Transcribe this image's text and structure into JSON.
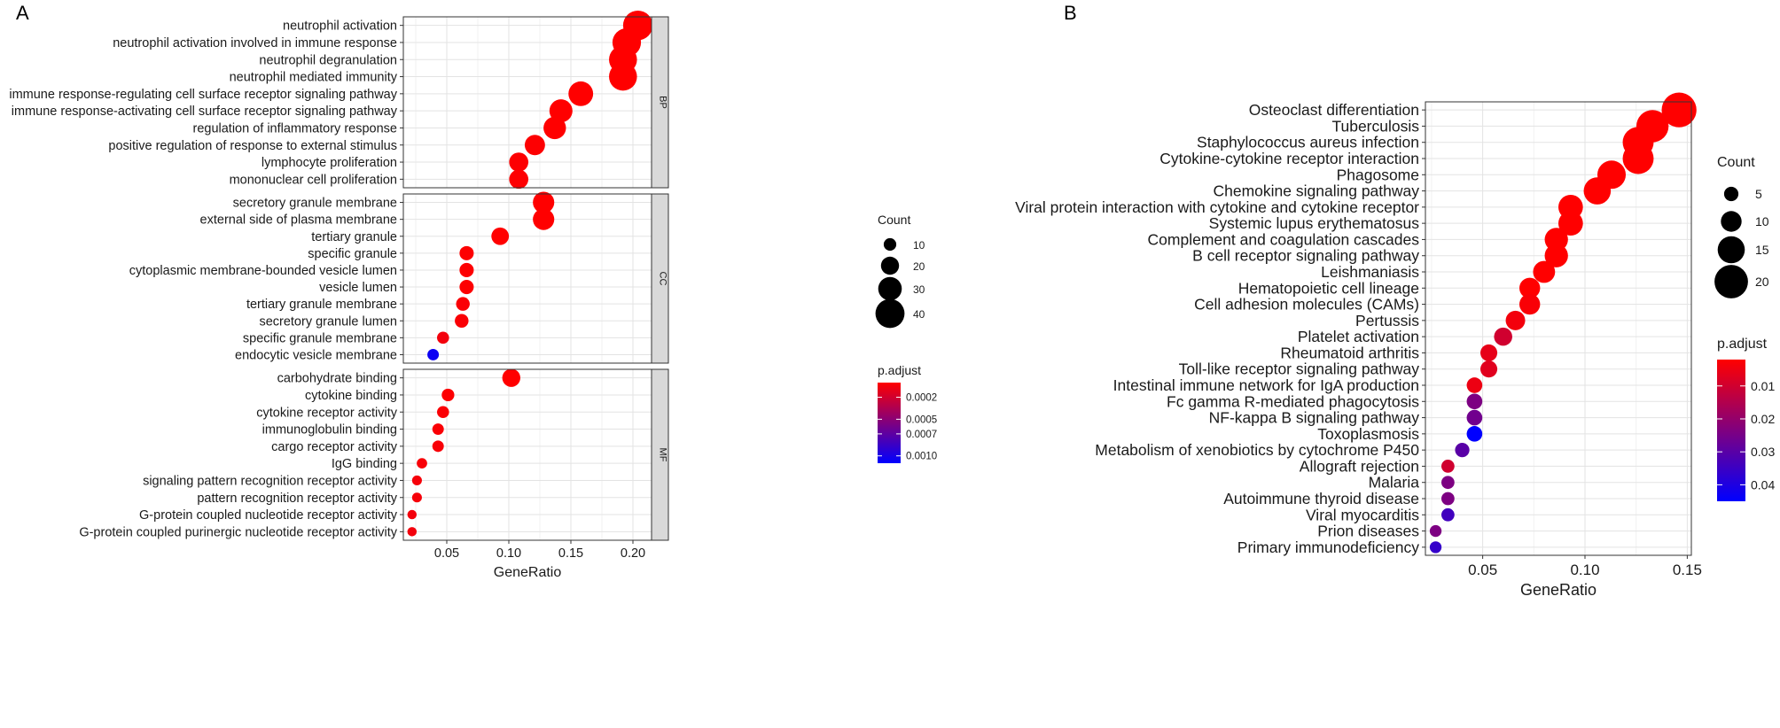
{
  "panels": {
    "a_label": "A",
    "b_label": "B"
  },
  "chart_data": [
    {
      "id": "A",
      "type": "scatter",
      "title": "",
      "xlabel": "GeneRatio",
      "ylabel": "",
      "xlim": [
        0.015,
        0.215
      ],
      "xticks": [
        0.05,
        0.1,
        0.15,
        0.2
      ],
      "xtick_labels": [
        "0.05",
        "0.10",
        "0.15",
        "0.20"
      ],
      "grid": true,
      "size_legend": {
        "title": "Count",
        "values": [
          10,
          20,
          30,
          40
        ],
        "labels": [
          "10",
          "20",
          "30",
          "40"
        ]
      },
      "color_legend": {
        "title": "p.adjust",
        "range": [
          0.0,
          0.0011
        ],
        "low_color": "#ff0000",
        "high_color": "#0000ff",
        "ticks": [
          0.0002,
          0.0005,
          0.0007,
          0.001
        ],
        "tick_labels": [
          "0.0002",
          "0.0005",
          "0.0007",
          "0.0010"
        ]
      },
      "facets": [
        {
          "strip": "BP",
          "points": [
            {
              "term": "neutrophil activation",
              "gene_ratio": 0.204,
              "count": 41,
              "p_adjust": 0.0
            },
            {
              "term": "neutrophil activation involved in immune response",
              "gene_ratio": 0.195,
              "count": 39,
              "p_adjust": 0.0
            },
            {
              "term": "neutrophil degranulation",
              "gene_ratio": 0.192,
              "count": 38,
              "p_adjust": 0.0
            },
            {
              "term": "neutrophil mediated immunity",
              "gene_ratio": 0.192,
              "count": 38,
              "p_adjust": 0.0
            },
            {
              "term": "immune response-regulating cell surface receptor signaling pathway",
              "gene_ratio": 0.158,
              "count": 32,
              "p_adjust": 0.0
            },
            {
              "term": "immune response-activating cell surface receptor signaling pathway",
              "gene_ratio": 0.142,
              "count": 29,
              "p_adjust": 0.0
            },
            {
              "term": "regulation of inflammatory response",
              "gene_ratio": 0.137,
              "count": 28,
              "p_adjust": 0.0
            },
            {
              "term": "positive regulation of response to external stimulus",
              "gene_ratio": 0.121,
              "count": 24,
              "p_adjust": 1e-05
            },
            {
              "term": "lymphocyte proliferation",
              "gene_ratio": 0.108,
              "count": 22,
              "p_adjust": 1e-05
            },
            {
              "term": "mononuclear cell proliferation",
              "gene_ratio": 0.108,
              "count": 22,
              "p_adjust": 1e-05
            }
          ]
        },
        {
          "strip": "CC",
          "points": [
            {
              "term": "secretory granule membrane",
              "gene_ratio": 0.128,
              "count": 26,
              "p_adjust": 0.0
            },
            {
              "term": "external side of plasma membrane",
              "gene_ratio": 0.128,
              "count": 26,
              "p_adjust": 0.0
            },
            {
              "term": "tertiary granule",
              "gene_ratio": 0.093,
              "count": 19,
              "p_adjust": 0.0
            },
            {
              "term": "specific granule",
              "gene_ratio": 0.066,
              "count": 13,
              "p_adjust": 1e-05
            },
            {
              "term": "cytoplasmic membrane-bounded vesicle lumen",
              "gene_ratio": 0.066,
              "count": 13,
              "p_adjust": 1e-05
            },
            {
              "term": "vesicle lumen",
              "gene_ratio": 0.066,
              "count": 13,
              "p_adjust": 1e-05
            },
            {
              "term": "tertiary granule membrane",
              "gene_ratio": 0.063,
              "count": 12,
              "p_adjust": 2e-05
            },
            {
              "term": "secretory granule lumen",
              "gene_ratio": 0.062,
              "count": 12,
              "p_adjust": 2e-05
            },
            {
              "term": "specific granule membrane",
              "gene_ratio": 0.047,
              "count": 9,
              "p_adjust": 5e-05
            },
            {
              "term": "endocytic vesicle membrane",
              "gene_ratio": 0.039,
              "count": 8,
              "p_adjust": 0.00105
            }
          ]
        },
        {
          "strip": "MF",
          "points": [
            {
              "term": "carbohydrate binding",
              "gene_ratio": 0.102,
              "count": 20,
              "p_adjust": 0.0
            },
            {
              "term": "cytokine binding",
              "gene_ratio": 0.051,
              "count": 10,
              "p_adjust": 1e-05
            },
            {
              "term": "cytokine receptor activity",
              "gene_ratio": 0.047,
              "count": 9,
              "p_adjust": 2e-05
            },
            {
              "term": "immunoglobulin binding",
              "gene_ratio": 0.043,
              "count": 8,
              "p_adjust": 2e-05
            },
            {
              "term": "cargo receptor activity",
              "gene_ratio": 0.043,
              "count": 8,
              "p_adjust": 3e-05
            },
            {
              "term": "IgG binding",
              "gene_ratio": 0.03,
              "count": 6,
              "p_adjust": 3e-05
            },
            {
              "term": "signaling pattern recognition receptor activity",
              "gene_ratio": 0.026,
              "count": 5,
              "p_adjust": 4e-05
            },
            {
              "term": "pattern recognition receptor activity",
              "gene_ratio": 0.026,
              "count": 5,
              "p_adjust": 4e-05
            },
            {
              "term": "G-protein coupled nucleotide receptor activity",
              "gene_ratio": 0.022,
              "count": 4,
              "p_adjust": 5e-05
            },
            {
              "term": "G-protein coupled purinergic nucleotide receptor activity",
              "gene_ratio": 0.022,
              "count": 4,
              "p_adjust": 5e-05
            }
          ]
        }
      ]
    },
    {
      "id": "B",
      "type": "scatter",
      "title": "",
      "xlabel": "GeneRatio",
      "ylabel": "",
      "xlim": [
        0.022,
        0.152
      ],
      "xticks": [
        0.05,
        0.1,
        0.15
      ],
      "xtick_labels": [
        "0.05",
        "0.10",
        "0.15"
      ],
      "grid": true,
      "size_legend": {
        "title": "Count",
        "values": [
          5,
          10,
          15,
          20
        ],
        "labels": [
          "5",
          "10",
          "15",
          "20"
        ]
      },
      "color_legend": {
        "title": "p.adjust",
        "range": [
          0.002,
          0.045
        ],
        "low_color": "#ff0000",
        "high_color": "#0000ff",
        "ticks": [
          0.01,
          0.02,
          0.03,
          0.04
        ],
        "tick_labels": [
          "0.01",
          "0.02",
          "0.03",
          "0.04"
        ]
      },
      "points": [
        {
          "term": "Osteoclast differentiation",
          "gene_ratio": 0.146,
          "count": 21,
          "p_adjust": 0.002
        },
        {
          "term": "Tuberculosis",
          "gene_ratio": 0.133,
          "count": 19,
          "p_adjust": 0.002
        },
        {
          "term": "Staphylococcus aureus infection",
          "gene_ratio": 0.126,
          "count": 18,
          "p_adjust": 0.002
        },
        {
          "term": "Cytokine-cytokine receptor interaction",
          "gene_ratio": 0.126,
          "count": 18,
          "p_adjust": 0.002
        },
        {
          "term": "Phagosome",
          "gene_ratio": 0.113,
          "count": 16,
          "p_adjust": 0.002
        },
        {
          "term": "Chemokine signaling pathway",
          "gene_ratio": 0.106,
          "count": 15,
          "p_adjust": 0.002
        },
        {
          "term": "Viral protein interaction with cytokine and cytokine receptor",
          "gene_ratio": 0.093,
          "count": 13,
          "p_adjust": 0.002
        },
        {
          "term": "Systemic lupus erythematosus",
          "gene_ratio": 0.093,
          "count": 13,
          "p_adjust": 0.002
        },
        {
          "term": "Complement and coagulation cascades",
          "gene_ratio": 0.086,
          "count": 12,
          "p_adjust": 0.002
        },
        {
          "term": "B cell receptor signaling pathway",
          "gene_ratio": 0.086,
          "count": 12,
          "p_adjust": 0.002
        },
        {
          "term": "Leishmaniasis",
          "gene_ratio": 0.08,
          "count": 11,
          "p_adjust": 0.002
        },
        {
          "term": "Hematopoietic cell lineage",
          "gene_ratio": 0.073,
          "count": 10,
          "p_adjust": 0.002
        },
        {
          "term": "Cell adhesion molecules (CAMs)",
          "gene_ratio": 0.073,
          "count": 10,
          "p_adjust": 0.003
        },
        {
          "term": "Pertussis",
          "gene_ratio": 0.066,
          "count": 9,
          "p_adjust": 0.004
        },
        {
          "term": "Platelet activation",
          "gene_ratio": 0.06,
          "count": 8,
          "p_adjust": 0.01
        },
        {
          "term": "Rheumatoid arthritis",
          "gene_ratio": 0.053,
          "count": 7,
          "p_adjust": 0.006
        },
        {
          "term": "Toll-like receptor signaling pathway",
          "gene_ratio": 0.053,
          "count": 7,
          "p_adjust": 0.007
        },
        {
          "term": "Intestinal immune network for IgA production",
          "gene_ratio": 0.046,
          "count": 6,
          "p_adjust": 0.005
        },
        {
          "term": "Fc gamma R-mediated phagocytosis",
          "gene_ratio": 0.046,
          "count": 6,
          "p_adjust": 0.024
        },
        {
          "term": "NF-kappa B signaling pathway",
          "gene_ratio": 0.046,
          "count": 6,
          "p_adjust": 0.026
        },
        {
          "term": "Toxoplasmosis",
          "gene_ratio": 0.046,
          "count": 6,
          "p_adjust": 0.045
        },
        {
          "term": "Metabolism of xenobiotics by cytochrome P450",
          "gene_ratio": 0.04,
          "count": 5,
          "p_adjust": 0.03
        },
        {
          "term": "Allograft rejection",
          "gene_ratio": 0.033,
          "count": 4,
          "p_adjust": 0.01
        },
        {
          "term": "Malaria",
          "gene_ratio": 0.033,
          "count": 4,
          "p_adjust": 0.024
        },
        {
          "term": "Autoimmune thyroid disease",
          "gene_ratio": 0.033,
          "count": 4,
          "p_adjust": 0.024
        },
        {
          "term": "Viral myocarditis",
          "gene_ratio": 0.033,
          "count": 4,
          "p_adjust": 0.034
        },
        {
          "term": "Prion diseases",
          "gene_ratio": 0.027,
          "count": 3,
          "p_adjust": 0.024
        },
        {
          "term": "Primary immunodeficiency",
          "gene_ratio": 0.027,
          "count": 3,
          "p_adjust": 0.036
        }
      ]
    }
  ]
}
